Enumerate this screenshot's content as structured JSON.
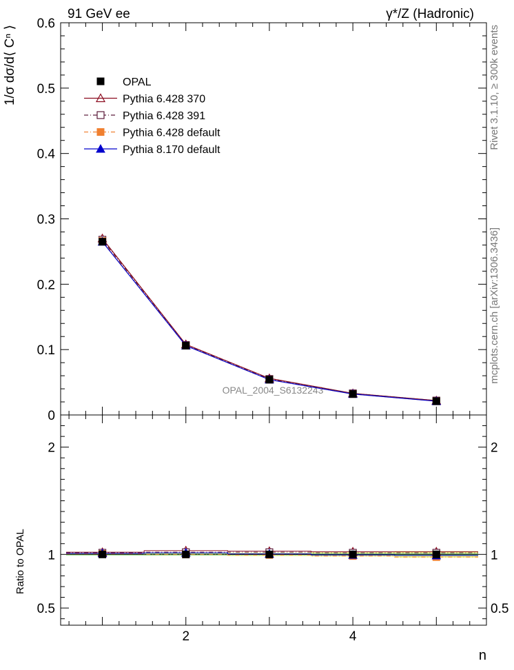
{
  "header": {
    "left": "91 GeV ee",
    "right": "γ*/Z (Hadronic)"
  },
  "side": {
    "rivet": "Rivet 3.1.10, ≥ 300k events",
    "mcplots": "mcplots.cern.ch [arXiv:1306.3436]"
  },
  "watermark": "OPAL_2004_S6132243",
  "chart_data": [
    {
      "type": "line",
      "panel": "main",
      "ylabel": "1/σ dσ/d⟨ Cⁿ ⟩",
      "xlabel": "",
      "xlim": [
        0.5,
        5.6
      ],
      "ylim": [
        0,
        0.6
      ],
      "yticks": [
        0,
        0.1,
        0.2,
        0.3,
        0.4,
        0.5,
        0.6
      ],
      "ytick_labels": [
        "0",
        "0.1",
        "0.2",
        "0.3",
        "0.4",
        "0.5",
        "0.6"
      ],
      "legend_position": "top-left",
      "x": [
        1,
        2,
        3,
        4,
        5
      ],
      "series": [
        {
          "name": "OPAL",
          "color": "#000000",
          "marker": "square-filled",
          "values": [
            0.265,
            0.106,
            0.054,
            0.032,
            0.021
          ]
        },
        {
          "name": "Pythia 6.428 370",
          "color": "#8b0a1e",
          "marker": "triangle-open",
          "line": "solid",
          "values": [
            0.27,
            0.108,
            0.056,
            0.033,
            0.022
          ]
        },
        {
          "name": "Pythia 6.428 391",
          "color": "#5a1a3a",
          "marker": "square-open",
          "line": "dashdot",
          "values": [
            0.268,
            0.107,
            0.055,
            0.033,
            0.022
          ]
        },
        {
          "name": "Pythia 6.428 default",
          "color": "#f08030",
          "marker": "square-filled",
          "line": "dashdot",
          "values": [
            0.266,
            0.106,
            0.054,
            0.032,
            0.021
          ]
        },
        {
          "name": "Pythia 8.170 default",
          "color": "#0000cc",
          "marker": "triangle-filled",
          "line": "solid",
          "values": [
            0.265,
            0.106,
            0.054,
            0.032,
            0.021
          ]
        }
      ]
    },
    {
      "type": "line",
      "panel": "ratio",
      "ylabel": "Ratio to OPAL",
      "xlabel": "n",
      "xlim": [
        0.5,
        5.6
      ],
      "ylim": [
        0.34,
        2.3
      ],
      "xticks": [
        2,
        4
      ],
      "xtick_labels": [
        "2",
        "4"
      ],
      "yticks": [
        0.5,
        1,
        2
      ],
      "ytick_labels": [
        "0.5",
        "1",
        "2"
      ],
      "x": [
        1,
        2,
        3,
        4,
        5
      ],
      "band_green": 0.01,
      "band_yellow": [
        0.01,
        0.012,
        0.015,
        0.02,
        0.03
      ],
      "series": [
        {
          "name": "Pythia 6.428 370",
          "color": "#8b0a1e",
          "marker": "triangle-open",
          "line": "solid",
          "values": [
            1.02,
            1.035,
            1.03,
            1.025,
            1.025
          ]
        },
        {
          "name": "Pythia 6.428 391",
          "color": "#5a1a3a",
          "marker": "square-open",
          "line": "dashdot",
          "values": [
            1.015,
            1.02,
            1.02,
            1.015,
            1.015
          ]
        },
        {
          "name": "Pythia 6.428 default",
          "color": "#f08030",
          "marker": "square-filled",
          "line": "dashdot",
          "values": [
            1.005,
            1.0,
            0.995,
            0.985,
            0.975
          ]
        },
        {
          "name": "Pythia 8.170 default",
          "color": "#0000cc",
          "marker": "triangle-filled",
          "line": "solid",
          "values": [
            1.01,
            1.015,
            1.005,
            0.995,
            0.99
          ]
        }
      ]
    }
  ]
}
